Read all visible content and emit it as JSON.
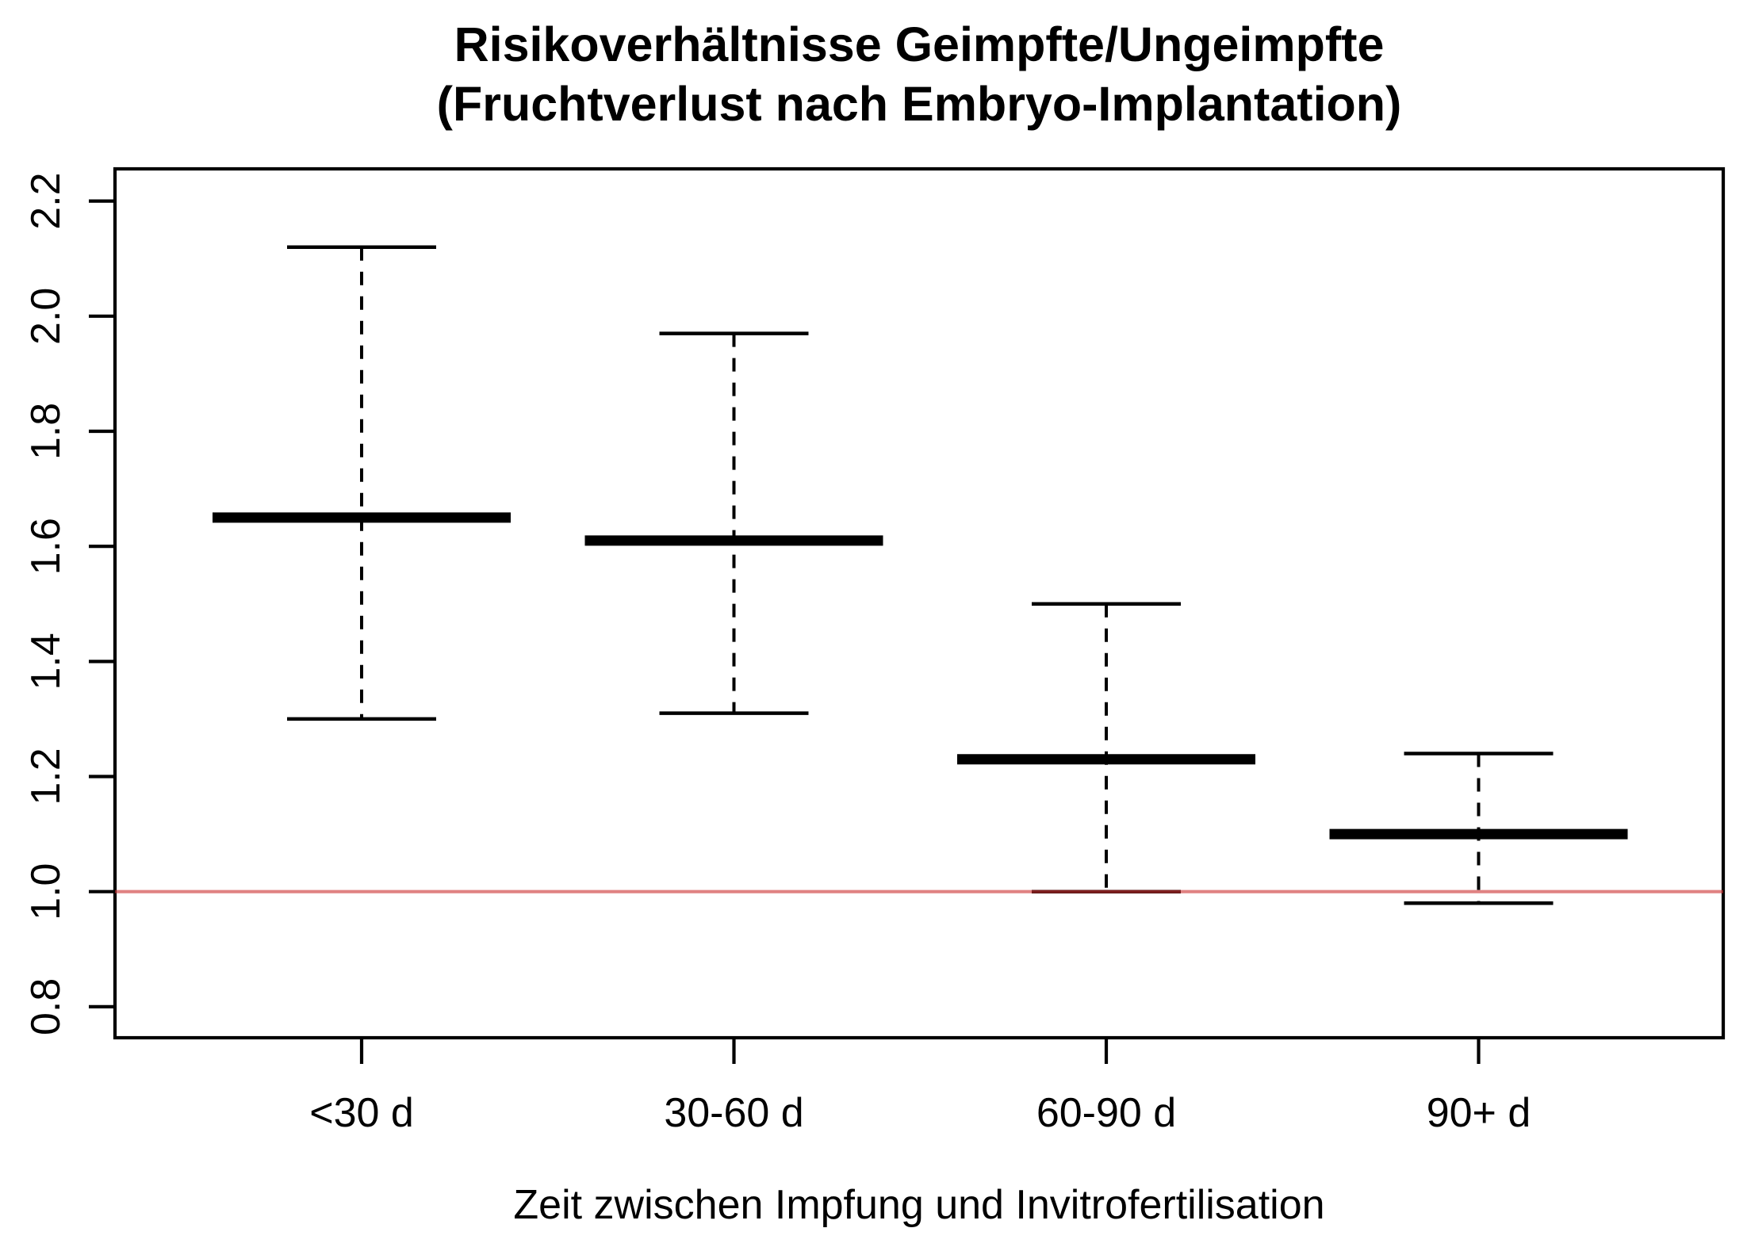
{
  "page": {
    "background": "#ffffff"
  },
  "chart_data": {
    "type": "scatter",
    "variant": "point-estimates-with-ci-whiskers (R bxp style)",
    "title_lines": [
      "Risikoverhältnisse Geimpfte/Ungeimpfte",
      "(Fruchtverlust nach Embryo-Implantation)"
    ],
    "xlabel": "Zeit zwischen Impfung und Invitrofertilisation",
    "ylabel": "",
    "categories": [
      "<30 d",
      "30-60 d",
      "60-90 d",
      "90+ d"
    ],
    "series": [
      {
        "name": "Risikoverhältnis Geimpfte/Ungeimpfte",
        "estimates": [
          1.65,
          1.61,
          1.23,
          1.1
        ],
        "ci_lower": [
          1.3,
          1.31,
          1.0,
          0.98
        ],
        "ci_upper": [
          2.12,
          1.97,
          1.5,
          1.24
        ]
      }
    ],
    "reference_line": {
      "value": 1.0,
      "color": "#cc3333",
      "opacity": 0.61
    },
    "ylim": [
      0.8,
      2.2
    ],
    "yticks": [
      0.8,
      1.0,
      1.2,
      1.4,
      1.6,
      1.8,
      2.0,
      2.2
    ],
    "ytick_labels": [
      "0.8",
      "1.0",
      "1.2",
      "1.4",
      "1.6",
      "1.8",
      "2.0",
      "2.2"
    ],
    "grid": false,
    "legend": null,
    "colors": {
      "data": "#000000",
      "reference": "#cc3333"
    }
  }
}
